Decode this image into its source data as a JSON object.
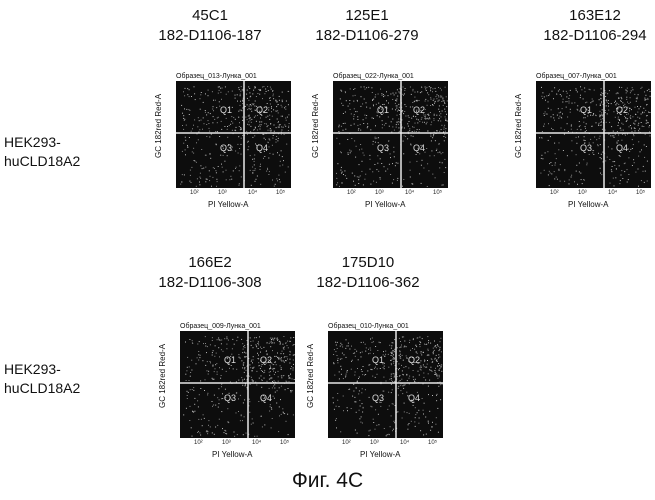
{
  "rows": [
    {
      "label_line1": "HEK293-",
      "label_line2": "huCLD18A2"
    },
    {
      "label_line1": "HEK293-",
      "label_line2": "huCLD18A2"
    }
  ],
  "samples": [
    {
      "clone": "45C1",
      "id": "182-D1106-187",
      "caption": "Образец_013-Лунка_001"
    },
    {
      "clone": "125E1",
      "id": "182-D1106-279",
      "caption": "Образец_022-Лунка_001"
    },
    {
      "clone": "163E12",
      "id": "182-D1106-294",
      "caption": "Образец_007-Лунка_001"
    },
    {
      "clone": "166E2",
      "id": "182-D1106-308",
      "caption": "Образец_009-Лунка_001"
    },
    {
      "clone": "175D10",
      "id": "182-D1106-362",
      "caption": "Образец_010-Лунка_001"
    }
  ],
  "plot_axes": {
    "ylabel": "GC 182red Red-A",
    "xlabel": "PI Yellow-A",
    "ticks": [
      "10²",
      "10³",
      "10⁴",
      "10⁵"
    ],
    "quadrants": [
      "Q1",
      "Q2",
      "Q3",
      "Q4"
    ]
  },
  "figure_caption": "Фиг. 4C"
}
